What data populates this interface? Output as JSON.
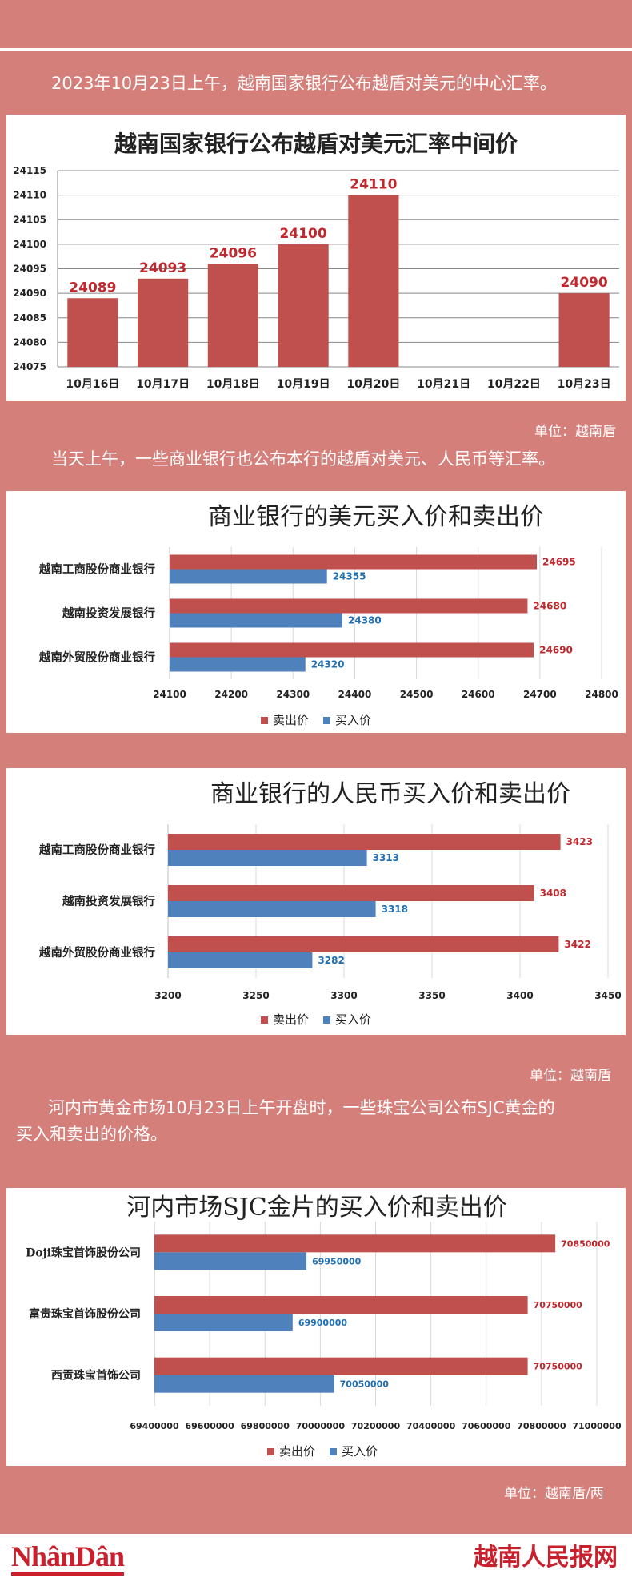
{
  "intro_text_1": "2023年10月23日上午，越南国家银行公布越盾对美元的中心汇率。",
  "intro_text_2": "当天上午，一些商业银行也公布本行的越盾对美元、人民币等汇率。",
  "intro_text_3_line1": "河内市黄金市场10月23日上午开盘时，一些珠宝公司公布SJC黄金的",
  "intro_text_3_line2": "买入和卖出的价格。",
  "unit_1": "单位：越南盾",
  "unit_2": "单位：越南盾",
  "unit_3": "单位：越南盾/两",
  "footer": {
    "logo_left": "NhânDân",
    "logo_right": "越南人民报网"
  },
  "colors": {
    "sell": "#c0504d",
    "buy": "#4f81bd",
    "background": "#d57f7b"
  },
  "chart_data": [
    {
      "type": "bar",
      "title": "越南国家银行公布越盾对美元汇率中间价",
      "categories": [
        "10月16日",
        "10月17日",
        "10月18日",
        "10月19日",
        "10月20日",
        "10月21日",
        "10月22日",
        "10月23日"
      ],
      "values": [
        24089,
        24093,
        24096,
        24100,
        24110,
        null,
        null,
        24090
      ],
      "ylim": [
        24075,
        24115
      ],
      "yticks": [
        24075,
        24080,
        24085,
        24090,
        24095,
        24100,
        24105,
        24110,
        24115
      ],
      "grid": true
    },
    {
      "type": "bar",
      "orientation": "horizontal",
      "title": "商业银行的美元买入价和卖出价",
      "categories": [
        "越南工商股份商业银行",
        "越南投资发展银行",
        "越南外贸股份商业银行"
      ],
      "series": [
        {
          "name": "卖出价",
          "values": [
            24695,
            24680,
            24690
          ]
        },
        {
          "name": "买入价",
          "values": [
            24355,
            24380,
            24320
          ]
        }
      ],
      "xlim": [
        24100,
        24800
      ],
      "xticks": [
        24100,
        24200,
        24300,
        24400,
        24500,
        24600,
        24700,
        24800
      ],
      "legend": "bottom",
      "grid": true
    },
    {
      "type": "bar",
      "orientation": "horizontal",
      "title": "商业银行的人民币买入价和卖出价",
      "categories": [
        "越南工商股份商业银行",
        "越南投资发展银行",
        "越南外贸股份商业银行"
      ],
      "series": [
        {
          "name": "卖出价",
          "values": [
            3423,
            3408,
            3422
          ]
        },
        {
          "name": "买入价",
          "values": [
            3313,
            3318,
            3282
          ]
        }
      ],
      "xlim": [
        3200,
        3450
      ],
      "xticks": [
        3200,
        3250,
        3300,
        3350,
        3400,
        3450
      ],
      "legend": "bottom",
      "grid": true
    },
    {
      "type": "bar",
      "orientation": "horizontal",
      "title": "河内市场SJC金片的买入价和卖出价",
      "categories": [
        "Doji珠宝首饰股份公司",
        "富贵珠宝首饰股份公司",
        "西贡珠宝首饰公司"
      ],
      "series": [
        {
          "name": "卖出价",
          "values": [
            70850000,
            70750000,
            70750000
          ]
        },
        {
          "name": "买入价",
          "values": [
            69950000,
            69900000,
            70050000
          ]
        }
      ],
      "xlim": [
        69400000,
        71000000
      ],
      "xticks": [
        69400000,
        69600000,
        69800000,
        70000000,
        70200000,
        70400000,
        70600000,
        70800000,
        71000000
      ],
      "legend": "bottom",
      "grid": true
    }
  ]
}
